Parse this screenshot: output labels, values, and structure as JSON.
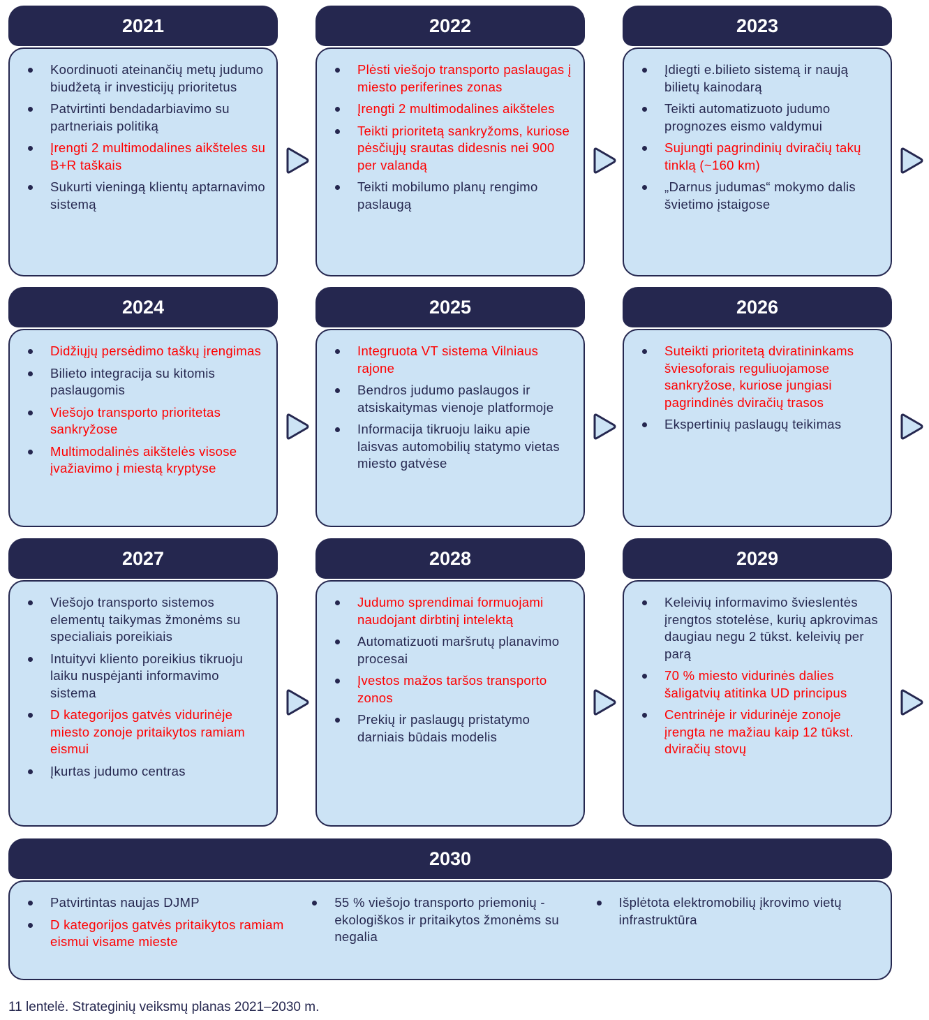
{
  "colors": {
    "header": "#25274f",
    "box": "#cce3f5",
    "highlight": "#ff0000",
    "text": "#25274f"
  },
  "years": [
    {
      "year": "2021",
      "items": [
        {
          "text": "Koordinuoti ateinančių metų judumo biudžetą ir investicijų prioritetus",
          "highlight": false
        },
        {
          "text": "Patvirtinti bendadarbiavimo su partneriais politiką",
          "highlight": false
        },
        {
          "text": "Įrengti 2 multimodalines aikšteles su B+R taškais",
          "highlight": true
        },
        {
          "text": "Sukurti vieningą klientų aptarnavimo sistemą",
          "highlight": false
        }
      ]
    },
    {
      "year": "2022",
      "items": [
        {
          "text": "Plėsti viešojo transporto paslaugas į miesto periferines zonas",
          "highlight": true
        },
        {
          "text": "Įrengti 2 multimodalines aikšteles",
          "highlight": true
        },
        {
          "text": "Teikti prioritetą sankryžoms, kuriose pėsčiųjų srautas didesnis nei 900 per valandą",
          "highlight": true
        },
        {
          "text": "Teikti mobilumo planų rengimo paslaugą",
          "highlight": false
        }
      ]
    },
    {
      "year": "2023",
      "items": [
        {
          "text": "Įdiegti e.bilieto sistemą ir naują bilietų kainodarą",
          "highlight": false
        },
        {
          "text": "Teikti automatizuoto judumo prognozes eismo valdymui",
          "highlight": false
        },
        {
          "text": "Sujungti pagrindinių dviračių takų tinklą (~160 km)",
          "highlight": true
        },
        {
          "text": "„Darnus judumas“ mokymo dalis švietimo įstaigose",
          "highlight": false
        }
      ]
    },
    {
      "year": "2024",
      "items": [
        {
          "text": "Didžiųjų persėdimo taškų įrengimas",
          "highlight": true
        },
        {
          "text": "Bilieto integracija su kitomis paslaugomis",
          "highlight": false
        },
        {
          "text": "Viešojo transporto prioritetas sankryžose",
          "highlight": true
        },
        {
          "text": "Multimodalinės aikštelės visose įvažiavimo į miestą kryptyse",
          "highlight": true
        }
      ]
    },
    {
      "year": "2025",
      "items": [
        {
          "text": "Integruota VT sistema Vilniaus rajone",
          "highlight": true
        },
        {
          "text": "Bendros judumo paslaugos ir atsiskaitymas vienoje platformoje",
          "highlight": false
        },
        {
          "text": "Informacija tikruoju laiku apie laisvas automobilių statymo vietas miesto gatvėse",
          "highlight": false
        }
      ]
    },
    {
      "year": "2026",
      "items": [
        {
          "text": "Suteikti prioritetą dviratininkams šviesoforais reguliuojamose sankryžose, kuriose jungiasi pagrindinės dviračių trasos",
          "highlight": true
        },
        {
          "text": "Ekspertinių paslaugų teikimas",
          "highlight": false
        }
      ]
    },
    {
      "year": "2027",
      "items": [
        {
          "text": "Viešojo transporto sistemos elementų taikymas žmonėms su specialiais poreikiais",
          "highlight": false
        },
        {
          "text": "Intuityvi kliento poreikius tikruoju laiku nuspėjanti informavimo sistema",
          "highlight": false
        },
        {
          "text": "D kategorijos gatvės vidurinėje miesto zonoje pritaikytos ramiam eismui",
          "highlight": true
        },
        {
          "text": "Įkurtas judumo centras",
          "highlight": false
        }
      ]
    },
    {
      "year": "2028",
      "items": [
        {
          "text": "Judumo sprendimai formuojami naudojant dirbtinį intelektą",
          "highlight": true
        },
        {
          "text": "Automatizuoti maršrutų planavimo procesai",
          "highlight": false
        },
        {
          "text": "Įvestos mažos taršos transporto zonos",
          "highlight": true
        },
        {
          "text": "Prekių ir paslaugų pristatymo darniais būdais modelis",
          "highlight": false
        }
      ]
    },
    {
      "year": "2029",
      "items": [
        {
          "text": "Keleivių informavimo švieslentės įrengtos stotelėse, kurių apkrovimas daugiau negu 2 tūkst. keleivių per parą",
          "highlight": false
        },
        {
          "text": "70 % miesto vidurinės dalies šaligatvių atitinka UD principus",
          "highlight": true
        },
        {
          "text": "Centrinėje ir vidurinėje zonoje įrengta ne mažiau kaip 12 tūkst. dviračių stovų",
          "highlight": true
        }
      ]
    }
  ],
  "final": {
    "year": "2030",
    "columns": [
      [
        {
          "text": "Patvirtintas naujas DJMP",
          "highlight": false
        },
        {
          "text": "D kategorijos gatvės pritaikytos ramiam eismui visame mieste",
          "highlight": true
        }
      ],
      [
        {
          "text": "55 % viešojo transporto priemonių - ekologiškos ir pritaikytos žmonėms su negalia",
          "highlight": false
        }
      ],
      [
        {
          "text": "Išplėtota elektromobilių įkrovimo vietų infrastruktūra",
          "highlight": false
        }
      ]
    ]
  },
  "caption": "11 lentelė. Strateginių veiksmų planas 2021–2030 m."
}
